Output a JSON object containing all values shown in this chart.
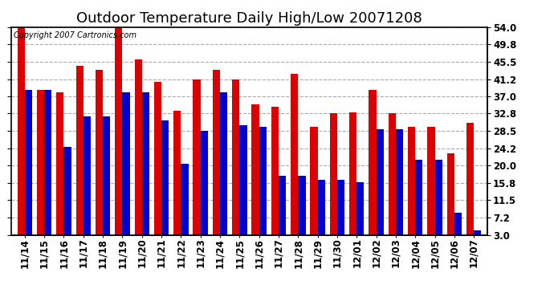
{
  "title": "Outdoor Temperature Daily High/Low 20071208",
  "copyright_text": "Copyright 2007 Cartronics.com",
  "dates": [
    "11/14",
    "11/15",
    "11/16",
    "11/17",
    "11/18",
    "11/19",
    "11/20",
    "11/21",
    "11/22",
    "11/23",
    "11/24",
    "11/25",
    "11/26",
    "11/27",
    "11/28",
    "11/29",
    "11/30",
    "12/01",
    "12/02",
    "12/03",
    "12/04",
    "12/05",
    "12/06",
    "12/07"
  ],
  "highs": [
    54.0,
    38.5,
    38.0,
    44.5,
    43.5,
    54.0,
    46.0,
    40.5,
    33.5,
    41.2,
    43.5,
    41.2,
    35.0,
    34.5,
    42.5,
    29.5,
    32.8,
    33.0,
    38.5,
    32.8,
    29.5,
    29.5,
    23.0,
    30.5
  ],
  "lows": [
    38.5,
    38.5,
    24.5,
    32.0,
    32.0,
    38.0,
    38.0,
    31.0,
    20.5,
    28.5,
    38.0,
    30.0,
    29.5,
    17.5,
    17.5,
    16.5,
    16.5,
    16.0,
    29.0,
    29.0,
    21.5,
    21.5,
    8.5,
    4.0
  ],
  "high_color": "#dd0000",
  "low_color": "#0000cc",
  "bg_color": "#ffffff",
  "grid_color": "#aaaaaa",
  "yticks": [
    3.0,
    7.2,
    11.5,
    15.8,
    20.0,
    24.2,
    28.5,
    32.8,
    37.0,
    41.2,
    45.5,
    49.8,
    54.0
  ],
  "ymin": 3.0,
  "ymax": 54.0,
  "title_fontsize": 13,
  "tick_fontsize": 8.5,
  "bar_width": 0.38
}
